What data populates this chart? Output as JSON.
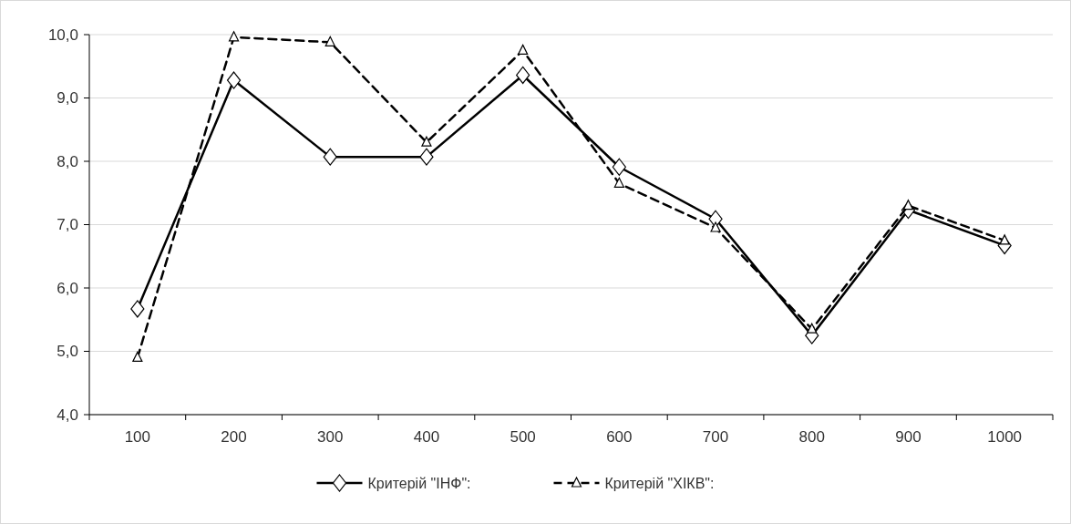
{
  "chart_data": {
    "type": "line",
    "categories": [
      "100",
      "200",
      "300",
      "400",
      "500",
      "600",
      "700",
      "800",
      "900",
      "1000"
    ],
    "series": [
      {
        "name": "Критерій \"ІНФ\":",
        "color": "#000000",
        "marker": "diamond",
        "line_style": "solid",
        "values": [
          5.67,
          9.28,
          8.07,
          8.07,
          9.36,
          7.91,
          7.09,
          5.25,
          7.23,
          6.67
        ]
      },
      {
        "name": "Критерій \"ХІКВ\":",
        "color": "#000000",
        "marker": "triangle",
        "line_style": "dashed",
        "values": [
          4.9,
          9.96,
          9.88,
          8.3,
          9.75,
          7.65,
          6.95,
          5.35,
          7.3,
          6.75
        ]
      }
    ],
    "ylim": [
      4,
      10
    ],
    "yticks": [
      {
        "value": 4,
        "label": "4,0"
      },
      {
        "value": 5,
        "label": "5,0"
      },
      {
        "value": 6,
        "label": "6,0"
      },
      {
        "value": 7,
        "label": "7,0"
      },
      {
        "value": 8,
        "label": "8,0"
      },
      {
        "value": 9,
        "label": "9,0"
      },
      {
        "value": 10,
        "label": "10,0"
      }
    ],
    "grid": "y",
    "legend": "bottom"
  }
}
